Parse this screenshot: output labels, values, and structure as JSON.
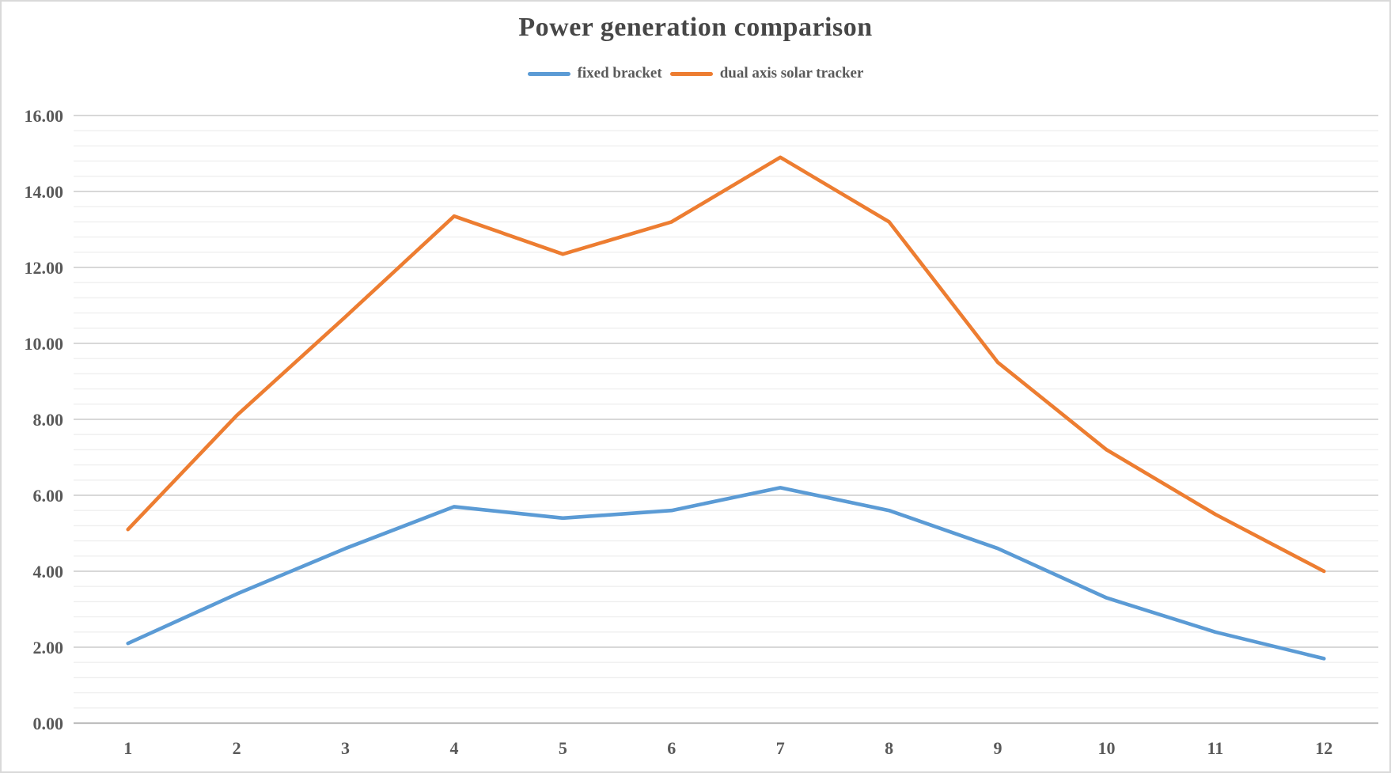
{
  "title": "Power generation comparison",
  "legend": {
    "items": [
      {
        "label": "fixed bracket",
        "color": "#5B9BD5"
      },
      {
        "label": "dual axis solar tracker",
        "color": "#ED7D31"
      }
    ]
  },
  "chart_data": {
    "type": "line",
    "title": "Power generation comparison",
    "x": [
      1,
      2,
      3,
      4,
      5,
      6,
      7,
      8,
      9,
      10,
      11,
      12
    ],
    "x_tick_labels": [
      "1",
      "2",
      "3",
      "4",
      "5",
      "6",
      "7",
      "8",
      "9",
      "10",
      "11",
      "12"
    ],
    "series": [
      {
        "name": "fixed bracket",
        "color": "#5B9BD5",
        "values": [
          2.1,
          3.4,
          4.6,
          5.7,
          5.4,
          5.6,
          6.2,
          5.6,
          4.6,
          3.3,
          2.4,
          1.7
        ]
      },
      {
        "name": "dual axis solar tracker",
        "color": "#ED7D31",
        "values": [
          5.1,
          8.1,
          10.7,
          13.35,
          12.35,
          13.2,
          14.9,
          13.2,
          9.5,
          7.2,
          5.5,
          4.0
        ]
      }
    ],
    "xlabel": "",
    "ylabel": "",
    "ylim": [
      0,
      16
    ],
    "y_major_step": 2,
    "y_minor_step": 0.4,
    "y_tick_labels": [
      "0.00",
      "2.00",
      "4.00",
      "6.00",
      "8.00",
      "10.00",
      "12.00",
      "14.00",
      "16.00"
    ],
    "grid": "horizontal major and minor gridlines",
    "legend_position": "top-center",
    "colors": {
      "major_gridline": "#D2D2D2",
      "minor_gridline": "#EFEFEF",
      "zero_axis": "#BFBFBF",
      "tick_text": "#595959",
      "title_text": "#474747"
    }
  }
}
